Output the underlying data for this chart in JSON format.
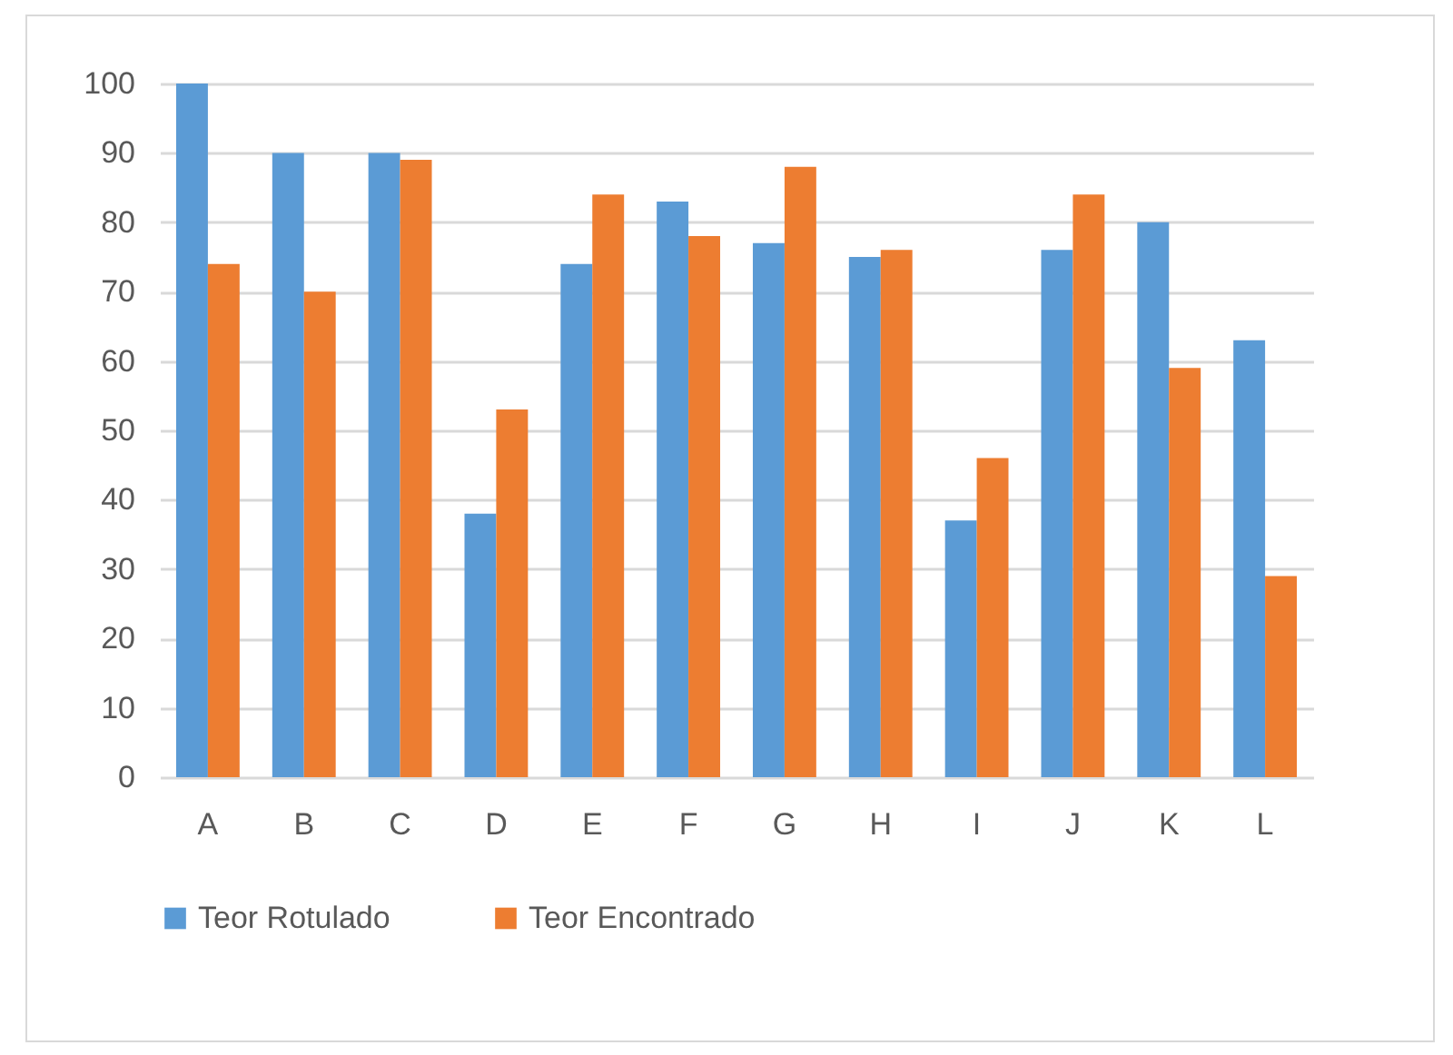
{
  "chart_data": {
    "type": "bar",
    "categories": [
      "A",
      "B",
      "C",
      "D",
      "E",
      "F",
      "G",
      "H",
      "I",
      "J",
      "K",
      "L"
    ],
    "series": [
      {
        "name": "Teor Rotulado",
        "color": "#5b9bd5",
        "values": [
          100,
          90,
          90,
          38,
          74,
          83,
          77,
          75,
          37,
          76,
          80,
          63
        ]
      },
      {
        "name": "Teor Encontrado",
        "color": "#ed7d31",
        "values": [
          74,
          70,
          89,
          53,
          84,
          78,
          88,
          76,
          46,
          84,
          59,
          29
        ]
      }
    ],
    "ylim": [
      0,
      100
    ],
    "yticks": [
      0,
      10,
      20,
      30,
      40,
      50,
      60,
      70,
      80,
      90,
      100
    ],
    "grid": "y",
    "legend": "bottom"
  }
}
